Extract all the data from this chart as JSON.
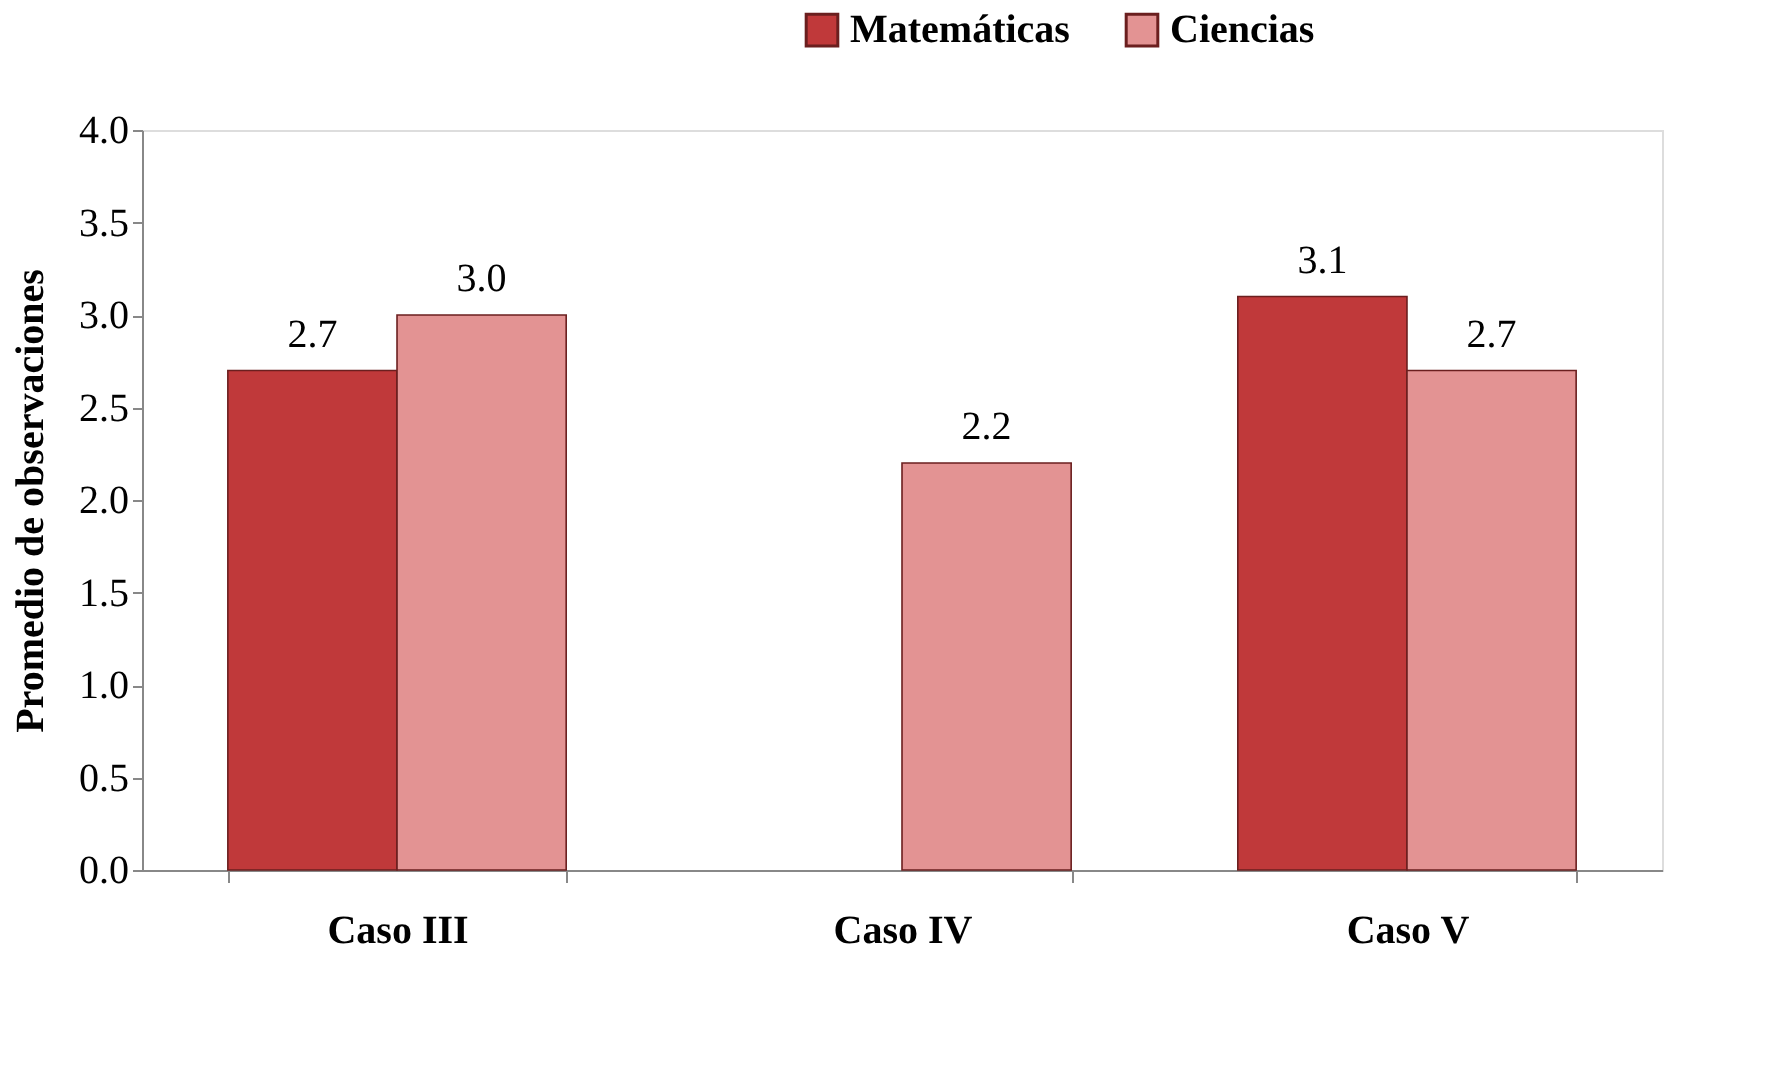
{
  "chart_data": {
    "type": "bar",
    "ylabel": "Promedio de observaciones",
    "categories": [
      "Caso III",
      "Caso IV",
      "Caso V"
    ],
    "series": [
      {
        "name": "Matemáticas",
        "color": "#c0393a",
        "values": [
          2.7,
          null,
          3.1
        ],
        "value_labels": [
          "2.7",
          null,
          "3.1"
        ]
      },
      {
        "name": "Ciencias",
        "color": "#e39393",
        "values": [
          3.0,
          2.2,
          2.7
        ],
        "value_labels": [
          "3.0",
          "2.2",
          "2.7"
        ]
      }
    ],
    "ylim": [
      0,
      4
    ],
    "yticks": [
      {
        "value": 0,
        "label": "0.0"
      },
      {
        "value": 0.5,
        "label": "0.5"
      },
      {
        "value": 1,
        "label": "1.0"
      },
      {
        "value": 1.5,
        "label": "1.5"
      },
      {
        "value": 2,
        "label": "2.0"
      },
      {
        "value": 2.5,
        "label": "2.5"
      },
      {
        "value": 3,
        "label": "3.0"
      },
      {
        "value": 3.5,
        "label": "3.5"
      },
      {
        "value": 4,
        "label": "4.0"
      }
    ],
    "legend": "top",
    "grid": false
  }
}
